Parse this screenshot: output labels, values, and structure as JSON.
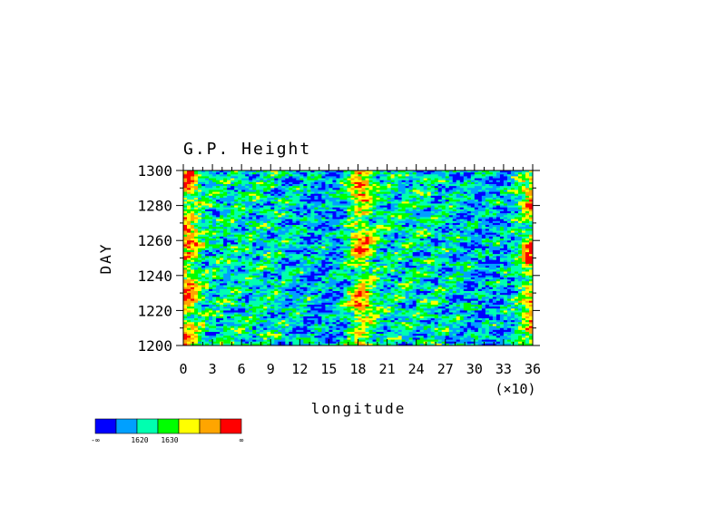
{
  "chart_data": {
    "type": "heatmap",
    "title": "G.P. Height",
    "xlabel": "longitude",
    "ylabel": "DAY",
    "x_multiplier_label": "(×10)",
    "x_ticks": [
      "0",
      "3",
      "6",
      "9",
      "12",
      "15",
      "18",
      "21",
      "24",
      "27",
      "30",
      "33",
      "36"
    ],
    "y_ticks": [
      "1200",
      "1220",
      "1240",
      "1260",
      "1280",
      "1300"
    ],
    "xlim": [
      0,
      36
    ],
    "ylim": [
      1200,
      1300
    ],
    "grid": false,
    "colorbar": {
      "colors": [
        "#0000ff",
        "#00a0ff",
        "#00ffb0",
        "#00ff00",
        "#ffff00",
        "#ffa500",
        "#ff0000"
      ],
      "labels": [
        "-∞",
        "1620",
        "1630",
        "∞"
      ],
      "position": "bottom-left"
    },
    "features": {
      "high_bands_lon_x10": [
        0.3,
        18.3,
        36
      ],
      "low_bands_lon_x10": [
        14.5,
        31
      ]
    }
  }
}
